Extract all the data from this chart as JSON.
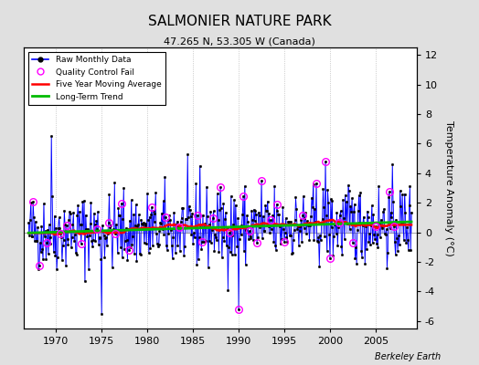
{
  "title": "SALMONIER NATURE PARK",
  "subtitle": "47.265 N, 53.305 W (Canada)",
  "ylabel": "Temperature Anomaly (°C)",
  "credit": "Berkeley Earth",
  "ylim": [
    -6.5,
    12.5
  ],
  "xlim": [
    1966.5,
    2009.5
  ],
  "yticks": [
    -6,
    -4,
    -2,
    0,
    2,
    4,
    6,
    8,
    10,
    12
  ],
  "xticks": [
    1970,
    1975,
    1980,
    1985,
    1990,
    1995,
    2000,
    2005
  ],
  "bg_color": "#e0e0e0",
  "plot_bg_color": "#ffffff",
  "legend_labels": [
    "Raw Monthly Data",
    "Quality Control Fail",
    "Five Year Moving Average",
    "Long-Term Trend"
  ],
  "line_color": "#0000ff",
  "stem_color": "#8888ff",
  "ma_color": "#ff0000",
  "trend_color": "#00bb00",
  "qc_color": "#ff00ff",
  "seed": 42
}
